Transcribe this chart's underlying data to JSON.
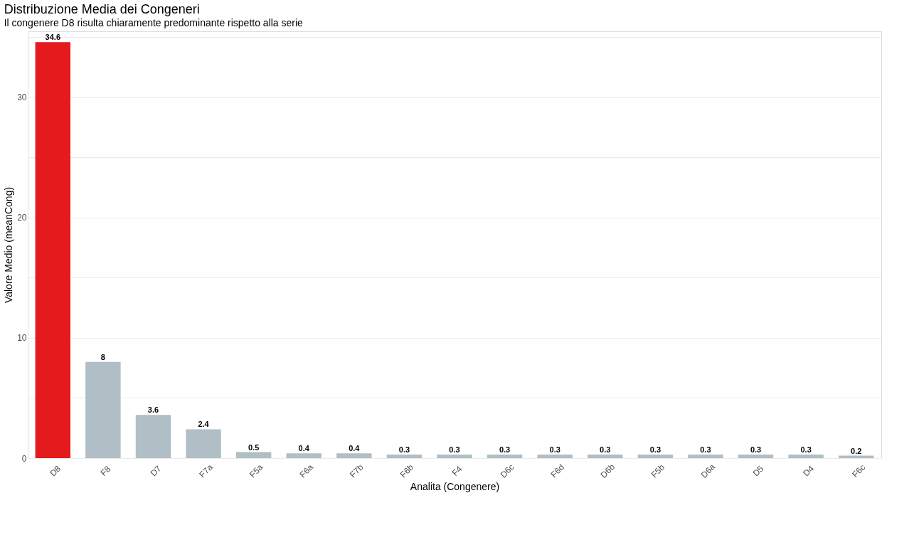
{
  "chart_data": {
    "type": "bar",
    "title": "Distribuzione Media dei Congeneri",
    "subtitle": "Il congenere D8 risulta chiaramente predominante rispetto alla serie",
    "xlabel": "Analita (Congenere)",
    "ylabel": "Valore Medio (meanCong)",
    "categories": [
      "D8",
      "F8",
      "D7",
      "F7a",
      "F5a",
      "F6a",
      "F7b",
      "F6b",
      "F4",
      "D6c",
      "F6d",
      "D6b",
      "F5b",
      "D6a",
      "D5",
      "D4",
      "F6c"
    ],
    "values": [
      34.6,
      8,
      3.6,
      2.4,
      0.5,
      0.4,
      0.4,
      0.3,
      0.3,
      0.3,
      0.3,
      0.3,
      0.3,
      0.3,
      0.3,
      0.3,
      0.2
    ],
    "colors": [
      "#e41a1c",
      "#b0bec5",
      "#b0bec5",
      "#b0bec5",
      "#b0bec5",
      "#b0bec5",
      "#b0bec5",
      "#b0bec5",
      "#b0bec5",
      "#b0bec5",
      "#b0bec5",
      "#b0bec5",
      "#b0bec5",
      "#b0bec5",
      "#b0bec5",
      "#b0bec5",
      "#b0bec5"
    ],
    "ylim": [
      0,
      35.5
    ],
    "yticks": [
      0,
      {
        "value": 5,
        "label": null
      },
      10,
      {
        "value": 15,
        "label": null
      },
      20,
      {
        "value": 25,
        "label": null
      },
      30,
      {
        "value": 35,
        "label": null
      }
    ],
    "data_labels": true,
    "grid": "y"
  }
}
